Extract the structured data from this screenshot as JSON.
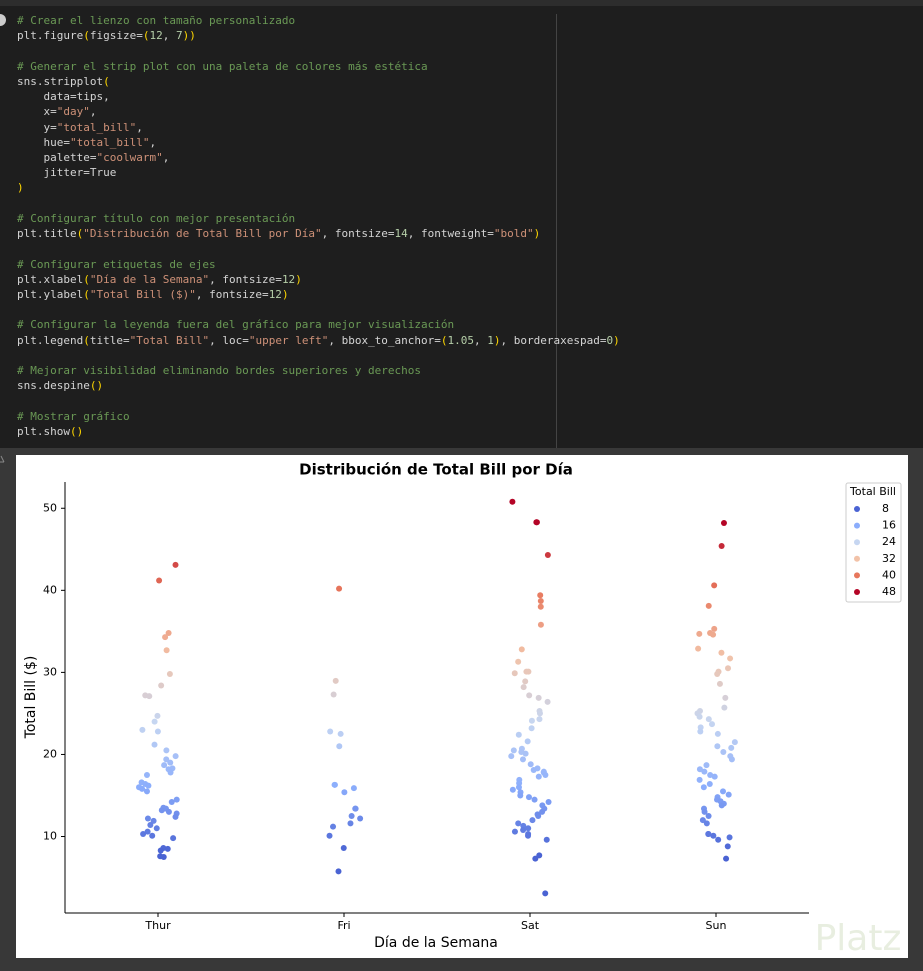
{
  "code": [
    [
      "# Crear el lienzo con tamaño personalizado",
      "plt.figure(figsize=(12, 7))"
    ],
    [
      "# Generar el strip plot con una paleta de colores más estética",
      "sns.stripplot(",
      "    data=tips,",
      "    x=\"day\",",
      "    y=\"total_bill\",",
      "    hue=\"total_bill\",",
      "    palette=\"coolwarm\",",
      "    jitter=True",
      ")"
    ],
    [
      "# Configurar título con mejor presentación",
      "plt.title(\"Distribución de Total Bill por Día\", fontsize=14, fontweight=\"bold\")"
    ],
    [
      "# Configurar etiquetas de ejes",
      "plt.xlabel(\"Día de la Semana\", fontsize=12)",
      "plt.ylabel(\"Total Bill ($)\", fontsize=12)"
    ],
    [
      "# Configurar la leyenda fuera del gráfico para mejor visualización",
      "plt.legend(title=\"Total Bill\", loc=\"upper left\", bbox_to_anchor=(1.05, 1), borderaxespad=0)"
    ],
    [
      "# Mejorar visibilidad eliminando bordes superiores y derechos",
      "sns.despine()"
    ],
    [
      "# Mostrar gráfico",
      "plt.show()"
    ]
  ],
  "watermark": "Platz",
  "chart_data": {
    "type": "strip",
    "title": "Distribución de Total Bill por Día",
    "x_label": "Día de la Semana",
    "y_label": "Total Bill ($)",
    "categories": [
      "Thur",
      "Fri",
      "Sat",
      "Sun"
    ],
    "values": [
      [
        43.1,
        41.2,
        34.8,
        34.3,
        32.7,
        29.8,
        28.4,
        27.2,
        27.1,
        24.7,
        24.0,
        23.0,
        22.8,
        21.2,
        20.5,
        19.8,
        19.4,
        19.0,
        18.7,
        18.3,
        18.2,
        17.8,
        17.5,
        16.6,
        16.4,
        16.2,
        16.0,
        15.8,
        15.5,
        14.5,
        14.2,
        13.5,
        13.4,
        13.2,
        13.0,
        12.8,
        12.4,
        12.2,
        11.9,
        11.4,
        11.0,
        10.6,
        10.3,
        10.1,
        9.8,
        8.6,
        8.5,
        8.3,
        7.6,
        7.5
      ],
      [
        40.2,
        28.97,
        27.3,
        22.8,
        22.5,
        21.0,
        16.3,
        16.3,
        15.9,
        15.4,
        13.4,
        13.4,
        12.5,
        12.2,
        11.6,
        11.2,
        10.1,
        8.6,
        5.75
      ],
      [
        50.8,
        48.3,
        48.3,
        44.3,
        39.4,
        38.7,
        38.0,
        35.8,
        32.8,
        31.3,
        30.1,
        30.1,
        29.9,
        28.9,
        28.2,
        27.2,
        26.9,
        26.4,
        25.3,
        25.0,
        24.3,
        24.1,
        23.2,
        22.4,
        21.6,
        20.7,
        20.5,
        20.3,
        20.1,
        19.8,
        19.4,
        18.8,
        18.3,
        18.1,
        17.9,
        17.8,
        17.5,
        17.3,
        16.9,
        16.5,
        16.0,
        15.7,
        15.4,
        15.0,
        14.8,
        14.5,
        14.2,
        13.8,
        13.4,
        13.0,
        12.7,
        12.5,
        12.0,
        11.6,
        11.3,
        11.0,
        10.8,
        10.6,
        10.3,
        10.1,
        9.6,
        7.7,
        7.3,
        3.07
      ],
      [
        48.2,
        45.4,
        40.6,
        38.1,
        35.3,
        34.8,
        34.7,
        34.6,
        32.9,
        32.4,
        31.7,
        30.5,
        30.1,
        29.8,
        28.6,
        26.9,
        25.7,
        25.3,
        25.0,
        24.6,
        24.3,
        23.7,
        23.3,
        22.8,
        22.5,
        21.5,
        21.0,
        20.8,
        20.3,
        19.8,
        19.4,
        18.7,
        18.2,
        17.9,
        17.5,
        17.3,
        16.9,
        16.4,
        16.0,
        15.5,
        15.1,
        14.8,
        14.5,
        14.3,
        14.0,
        13.8,
        13.4,
        13.0,
        12.5,
        12.0,
        11.6,
        10.3,
        10.3,
        10.1,
        9.9,
        9.6,
        8.8,
        7.3
      ]
    ],
    "ylim": [
      0.68,
      53.2
    ],
    "yticks": [
      10,
      20,
      30,
      40,
      50
    ],
    "legend": {
      "title": "Total Bill",
      "corner": "upper right",
      "values": [
        8,
        16,
        24,
        32,
        40,
        48
      ],
      "colors": [
        "#4a63d3",
        "#8badfc",
        "#c6d6f1",
        "#f2c2a8",
        "#e7775c",
        "#b40426"
      ]
    }
  }
}
